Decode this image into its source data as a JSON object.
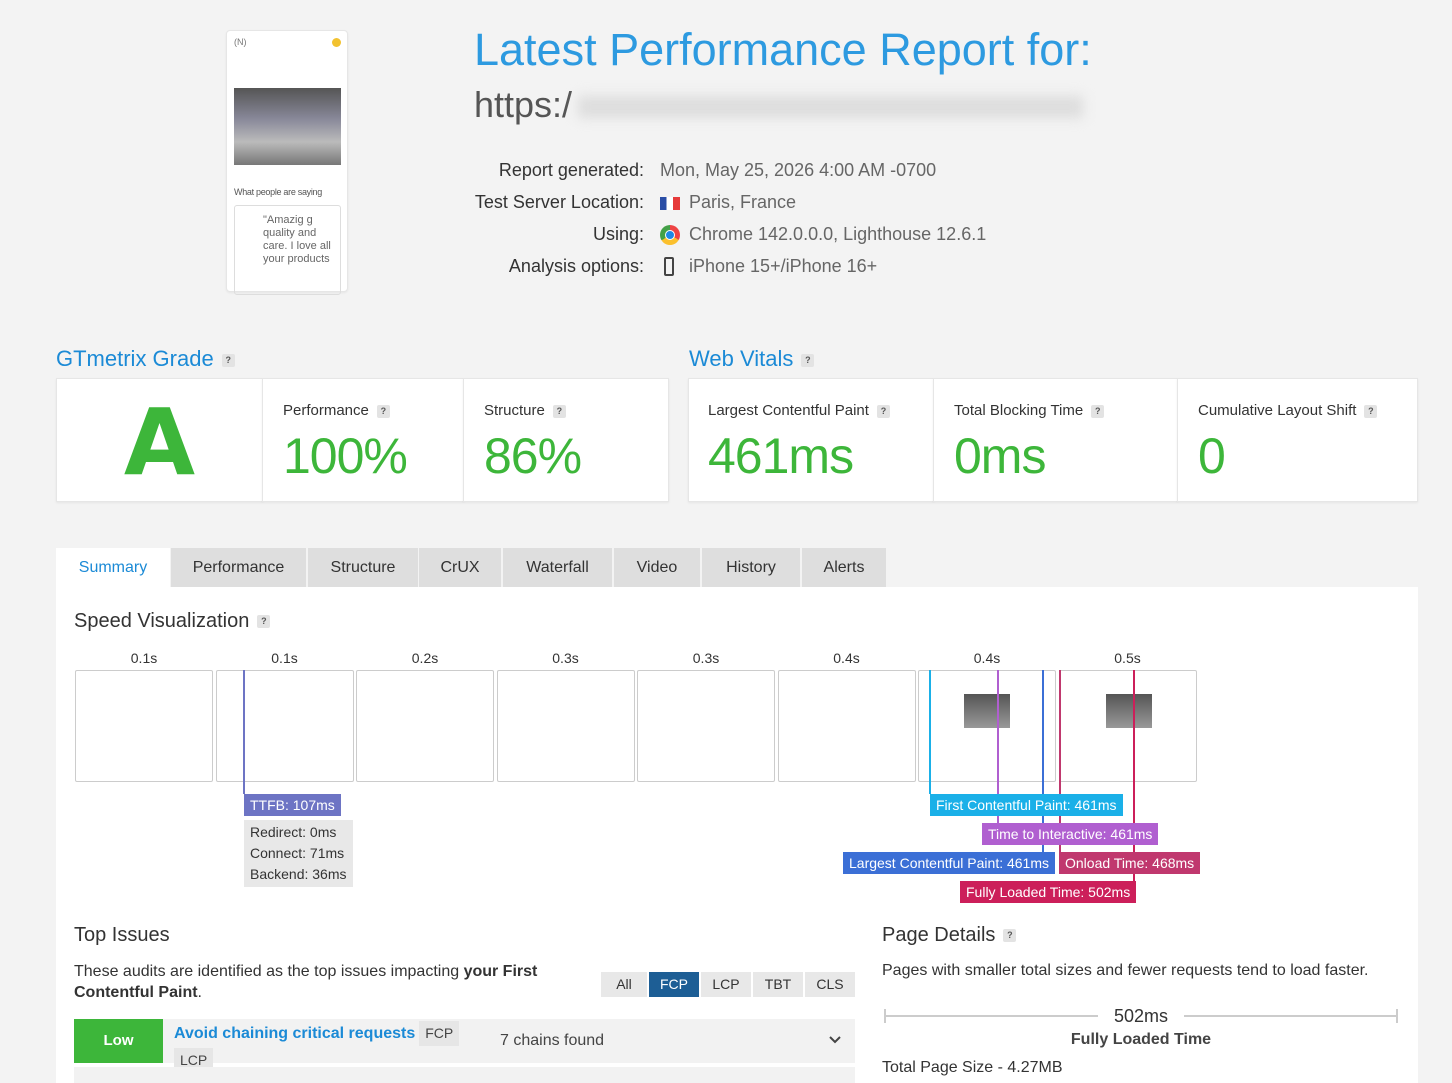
{
  "help_icon": "?",
  "thumbnail": {
    "caption": "What people are saying",
    "quote": "\"Amazig g quality and care. I love all your products"
  },
  "header": {
    "title": "Latest Performance Report for:",
    "url": "https:/",
    "details": [
      {
        "label": "Report generated:",
        "value": "Mon, May 25, 2026 4:00 AM -0700"
      },
      {
        "label": "Test Server Location:",
        "value": "Paris, France"
      },
      {
        "label": "Using:",
        "value": "Chrome 142.0.0.0, Lighthouse 12.6.1"
      },
      {
        "label": "Analysis options:",
        "value": "iPhone 15+/iPhone 16+"
      }
    ]
  },
  "grade": {
    "title": "GTmetrix Grade",
    "letter": "A",
    "metrics": [
      {
        "label": "Performance",
        "value": "100%"
      },
      {
        "label": "Structure",
        "value": "86%"
      }
    ]
  },
  "vitals": {
    "title": "Web Vitals",
    "metrics": [
      {
        "label": "Largest Contentful Paint",
        "value": "461ms"
      },
      {
        "label": "Total Blocking Time",
        "value": "0ms"
      },
      {
        "label": "Cumulative Layout Shift",
        "value": "0"
      }
    ]
  },
  "tabs": [
    "Summary",
    "Performance",
    "Structure",
    "CrUX",
    "Waterfall",
    "Video",
    "History",
    "Alerts"
  ],
  "speed": {
    "title": "Speed Visualization",
    "frame_times": [
      "0.1s",
      "0.1s",
      "0.2s",
      "0.3s",
      "0.3s",
      "0.4s",
      "0.4s",
      "0.5s"
    ],
    "ttfb": "TTFB: 107ms",
    "ttfb_details": [
      "Redirect: 0ms",
      "Connect: 71ms",
      "Backend: 36ms"
    ],
    "markers": [
      "First Contentful Paint: 461ms",
      "Time to Interactive: 461ms",
      "Largest Contentful Paint: 461ms",
      "Onload Time: 468ms",
      "Fully Loaded Time: 502ms"
    ]
  },
  "top_issues": {
    "title": "Top Issues",
    "description": "These audits are identified as the top issues impacting ",
    "description_bold": "your First Contentful Paint",
    "description_end": ".",
    "filters": [
      "All",
      "FCP",
      "LCP",
      "TBT",
      "CLS"
    ],
    "issue": {
      "badge": "Low",
      "title": "Avoid chaining critical requests",
      "tags": [
        "FCP",
        "LCP"
      ],
      "result": "7 chains found"
    }
  },
  "page_details": {
    "title": "Page Details",
    "description": "Pages with smaller total sizes and fewer requests tend to load faster.",
    "time": "502ms",
    "time_label": "Fully Loaded Time",
    "total_size": "Total Page Size - 4.27MB"
  }
}
